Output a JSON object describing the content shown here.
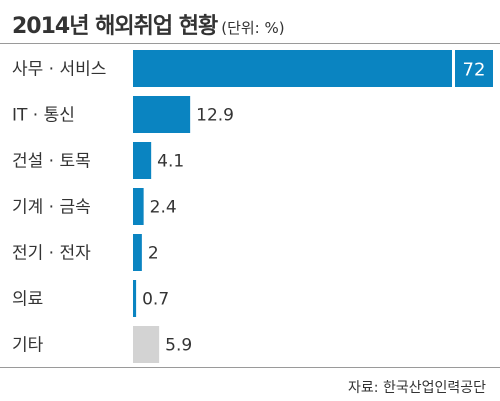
{
  "title": "2014년 해외취업 현황",
  "unit": "(단위: %)",
  "source": "자료: 한국산업인력공단",
  "chart_data": {
    "type": "bar",
    "orientation": "horizontal",
    "title": "2014년 해외취업 현황",
    "unit": "(단위: %)",
    "categories": [
      "사무 · 서비스",
      "IT · 통신",
      "건설 · 토목",
      "기계 · 금속",
      "전기 · 전자",
      "의료",
      "기타"
    ],
    "values": [
      72,
      12.9,
      4.1,
      2.4,
      2,
      0.7,
      5.9
    ],
    "value_labels": [
      "72",
      "12.9",
      "4.1",
      "2.4",
      "2",
      "0.7",
      "5.9"
    ],
    "colors": [
      "#0a84c1",
      "#0a84c1",
      "#0a84c1",
      "#0a84c1",
      "#0a84c1",
      "#0a84c1",
      "#d3d3d3"
    ],
    "xlim": [
      0,
      72
    ],
    "grid": false,
    "legend": "none"
  }
}
